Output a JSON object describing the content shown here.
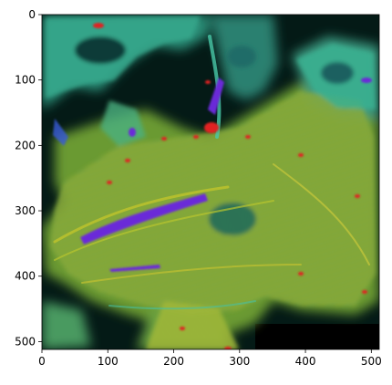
{
  "image": {
    "description_tag": "fluorescence-microscopy-cells",
    "colormap_colors": [
      "#000a0a",
      "#0f3a3a",
      "#2f8f7a",
      "#49c0a0",
      "#c8c830",
      "#e0d020",
      "#e02020",
      "#6a2ad8",
      "#3a5ad8"
    ]
  },
  "axes": {
    "x_ticks": [
      "0",
      "100",
      "200",
      "300",
      "400",
      "500"
    ],
    "y_ticks": [
      "0",
      "100",
      "200",
      "300",
      "400",
      "500"
    ],
    "x_tick_values": [
      0,
      100,
      200,
      300,
      400,
      500
    ],
    "y_tick_values": [
      0,
      100,
      200,
      300,
      400,
      500
    ],
    "xlim": [
      0,
      512
    ],
    "ylim": [
      512,
      0
    ]
  }
}
